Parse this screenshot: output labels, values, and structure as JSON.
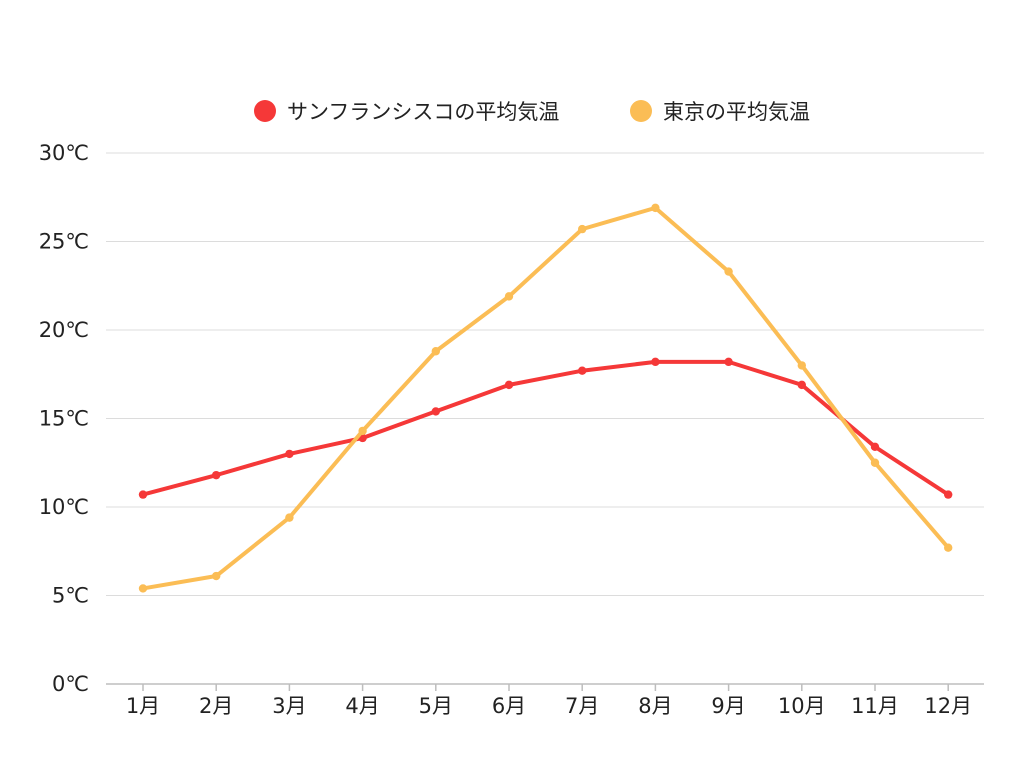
{
  "colors": {
    "sf": "#f53838",
    "tokyo": "#fbbd55",
    "grid": "#dcdcdc",
    "axis": "#bdbdbd",
    "text": "#222222"
  },
  "chart_data": {
    "type": "line",
    "title": "",
    "xlabel": "",
    "ylabel": "",
    "categories": [
      "1月",
      "2月",
      "3月",
      "4月",
      "5月",
      "6月",
      "7月",
      "8月",
      "9月",
      "10月",
      "11月",
      "12月"
    ],
    "y_ticks": [
      0,
      5,
      10,
      15,
      20,
      25,
      30
    ],
    "y_tick_labels": [
      "0℃",
      "5℃",
      "10℃",
      "15℃",
      "20℃",
      "25℃",
      "30℃"
    ],
    "ylim": [
      0,
      30
    ],
    "grid": true,
    "legend_position": "top-center",
    "series": [
      {
        "name": "サンフランシスコの平均気温",
        "color_key": "sf",
        "values": [
          10.7,
          11.8,
          13.0,
          13.9,
          15.4,
          16.9,
          17.7,
          18.2,
          18.2,
          16.9,
          13.4,
          10.7
        ]
      },
      {
        "name": "東京の平均気温",
        "color_key": "tokyo",
        "values": [
          5.4,
          6.1,
          9.4,
          14.3,
          18.8,
          21.9,
          25.7,
          26.9,
          23.3,
          18.0,
          12.5,
          7.7
        ]
      }
    ]
  }
}
